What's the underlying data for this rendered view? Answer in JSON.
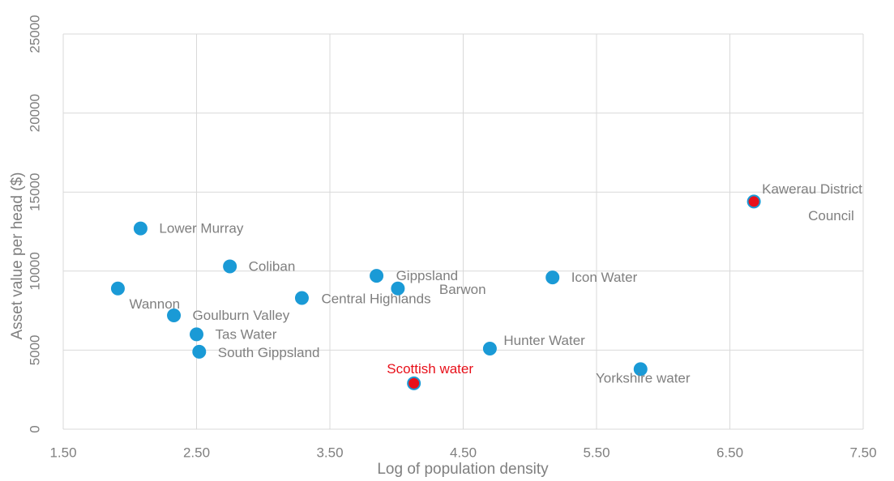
{
  "chart_data": {
    "type": "scatter",
    "x_label": "Log of population density",
    "y_label": "Asset value per head ($)",
    "xlim": [
      1.5,
      7.5
    ],
    "xticks": [
      {
        "value": 1.5,
        "label": "1.50"
      },
      {
        "value": 2.5,
        "label": "2.50"
      },
      {
        "value": 3.5,
        "label": "3.50"
      },
      {
        "value": 4.5,
        "label": "4.50"
      },
      {
        "value": 5.5,
        "label": "5.50"
      },
      {
        "value": 6.5,
        "label": "6.50"
      },
      {
        "value": 7.5,
        "label": "7.50"
      }
    ],
    "ylim": [
      0,
      25000
    ],
    "yticks": [
      0,
      5000,
      10000,
      15000,
      20000,
      25000
    ],
    "grid": true,
    "series": [
      {
        "labels": [
          "Wannon",
          "Lower Murray",
          "Goulburn Valley",
          "Tas Water",
          "South Gippsland",
          "Coliban",
          "Central Highlands",
          "Gippsland",
          "Barwon",
          "Scottish water",
          "Hunter Water",
          "Icon Water",
          "Yorkshire water",
          "Kawerau District Council"
        ],
        "x": [
          1.91,
          2.08,
          2.33,
          2.5,
          2.52,
          2.75,
          3.29,
          3.85,
          4.01,
          4.13,
          4.7,
          5.17,
          5.83,
          6.68
        ],
        "values": [
          8900,
          12700,
          7200,
          6000,
          4900,
          10300,
          8300,
          9700,
          8900,
          2900,
          5100,
          9600,
          3800,
          14400
        ],
        "color": "#1a9ad6",
        "point_colors": [
          "#1a9ad6",
          "#1a9ad6",
          "#1a9ad6",
          "#1a9ad6",
          "#1a9ad6",
          "#1a9ad6",
          "#1a9ad6",
          "#1a9ad6",
          "#1a9ad6",
          "#e8101a",
          "#1a9ad6",
          "#1a9ad6",
          "#1a9ad6",
          "#e8101a"
        ],
        "label_colors": [
          "#7f7f7f",
          "#7f7f7f",
          "#7f7f7f",
          "#7f7f7f",
          "#7f7f7f",
          "#7f7f7f",
          "#7f7f7f",
          "#7f7f7f",
          "#7f7f7f",
          "#e8101a",
          "#7f7f7f",
          "#7f7f7f",
          "#7f7f7f",
          "#7f7f7f"
        ]
      }
    ]
  }
}
